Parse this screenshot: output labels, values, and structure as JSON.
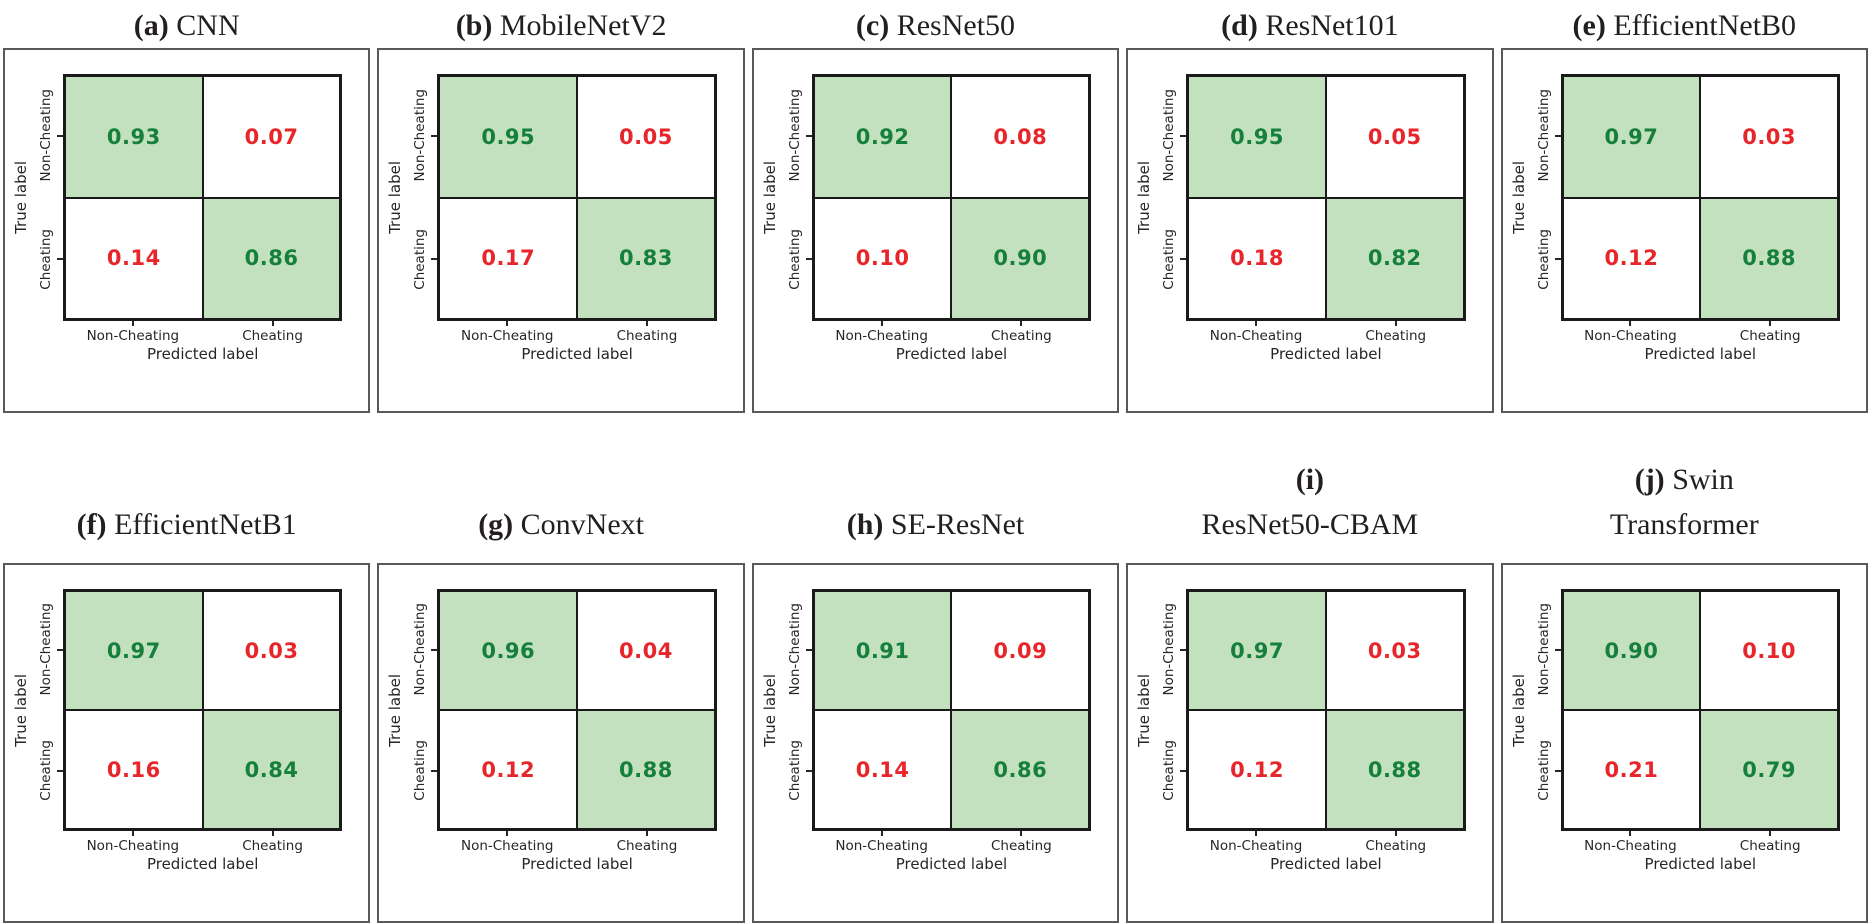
{
  "axes": {
    "x_label": "Predicted label",
    "y_label": "True label",
    "x_ticks": [
      "Non-Cheating",
      "Cheating"
    ],
    "y_ticks": [
      "Non-Cheating",
      "Cheating"
    ]
  },
  "colors": {
    "diagonal_fill": "#c3e1bf",
    "diagonal_text": "#157f3b",
    "off_diagonal_text": "#e7262b",
    "panel_border": "#58595b",
    "matrix_border": "#1a1a1a",
    "axis_text": "#262626",
    "title_text": "#231f20"
  },
  "chart_data": [
    {
      "type": "heatmap",
      "subfig": "a",
      "model": "CNN",
      "title_lines": [
        {
          "bold": "(a)",
          "rest": " CNN"
        }
      ],
      "rows": [
        "Non-Cheating",
        "Cheating"
      ],
      "cols": [
        "Non-Cheating",
        "Cheating"
      ],
      "values": [
        [
          0.93,
          0.07
        ],
        [
          0.14,
          0.86
        ]
      ]
    },
    {
      "type": "heatmap",
      "subfig": "b",
      "model": "MobileNetV2",
      "title_lines": [
        {
          "bold": "(b)",
          "rest": " MobileNetV2"
        }
      ],
      "rows": [
        "Non-Cheating",
        "Cheating"
      ],
      "cols": [
        "Non-Cheating",
        "Cheating"
      ],
      "values": [
        [
          0.95,
          0.05
        ],
        [
          0.17,
          0.83
        ]
      ]
    },
    {
      "type": "heatmap",
      "subfig": "c",
      "model": "ResNet50",
      "title_lines": [
        {
          "bold": "(c)",
          "rest": " ResNet50"
        }
      ],
      "rows": [
        "Non-Cheating",
        "Cheating"
      ],
      "cols": [
        "Non-Cheating",
        "Cheating"
      ],
      "values": [
        [
          0.92,
          0.08
        ],
        [
          0.1,
          0.9
        ]
      ]
    },
    {
      "type": "heatmap",
      "subfig": "d",
      "model": "ResNet101",
      "title_lines": [
        {
          "bold": "(d)",
          "rest": " ResNet101"
        }
      ],
      "rows": [
        "Non-Cheating",
        "Cheating"
      ],
      "cols": [
        "Non-Cheating",
        "Cheating"
      ],
      "values": [
        [
          0.95,
          0.05
        ],
        [
          0.18,
          0.82
        ]
      ]
    },
    {
      "type": "heatmap",
      "subfig": "e",
      "model": "EfficientNetB0",
      "title_lines": [
        {
          "bold": "(e)",
          "rest": " EfficientNetB0"
        }
      ],
      "rows": [
        "Non-Cheating",
        "Cheating"
      ],
      "cols": [
        "Non-Cheating",
        "Cheating"
      ],
      "values": [
        [
          0.97,
          0.03
        ],
        [
          0.12,
          0.88
        ]
      ]
    },
    {
      "type": "heatmap",
      "subfig": "f",
      "model": "EfficientNetB1",
      "title_lines": [
        {
          "bold": "(f)",
          "rest": " EfficientNetB1"
        }
      ],
      "rows": [
        "Non-Cheating",
        "Cheating"
      ],
      "cols": [
        "Non-Cheating",
        "Cheating"
      ],
      "values": [
        [
          0.97,
          0.03
        ],
        [
          0.16,
          0.84
        ]
      ]
    },
    {
      "type": "heatmap",
      "subfig": "g",
      "model": "ConvNext",
      "title_lines": [
        {
          "bold": "(g)",
          "rest": " ConvNext"
        }
      ],
      "rows": [
        "Non-Cheating",
        "Cheating"
      ],
      "cols": [
        "Non-Cheating",
        "Cheating"
      ],
      "values": [
        [
          0.96,
          0.04
        ],
        [
          0.12,
          0.88
        ]
      ]
    },
    {
      "type": "heatmap",
      "subfig": "h",
      "model": "SE-ResNet",
      "title_lines": [
        {
          "bold": "(h)",
          "rest": " SE-ResNet"
        }
      ],
      "rows": [
        "Non-Cheating",
        "Cheating"
      ],
      "cols": [
        "Non-Cheating",
        "Cheating"
      ],
      "values": [
        [
          0.91,
          0.09
        ],
        [
          0.14,
          0.86
        ]
      ]
    },
    {
      "type": "heatmap",
      "subfig": "i",
      "model": "ResNet50-CBAM",
      "title_lines": [
        {
          "bold": "(i)",
          "rest": ""
        },
        {
          "bold": "",
          "rest": "ResNet50-CBAM"
        }
      ],
      "rows": [
        "Non-Cheating",
        "Cheating"
      ],
      "cols": [
        "Non-Cheating",
        "Cheating"
      ],
      "values": [
        [
          0.97,
          0.03
        ],
        [
          0.12,
          0.88
        ]
      ]
    },
    {
      "type": "heatmap",
      "subfig": "j",
      "model": "Swin Transformer",
      "title_lines": [
        {
          "bold": "(j)",
          "rest": " Swin"
        },
        {
          "bold": "",
          "rest": "Transformer"
        }
      ],
      "rows": [
        "Non-Cheating",
        "Cheating"
      ],
      "cols": [
        "Non-Cheating",
        "Cheating"
      ],
      "values": [
        [
          0.9,
          0.1
        ],
        [
          0.21,
          0.79
        ]
      ]
    }
  ]
}
